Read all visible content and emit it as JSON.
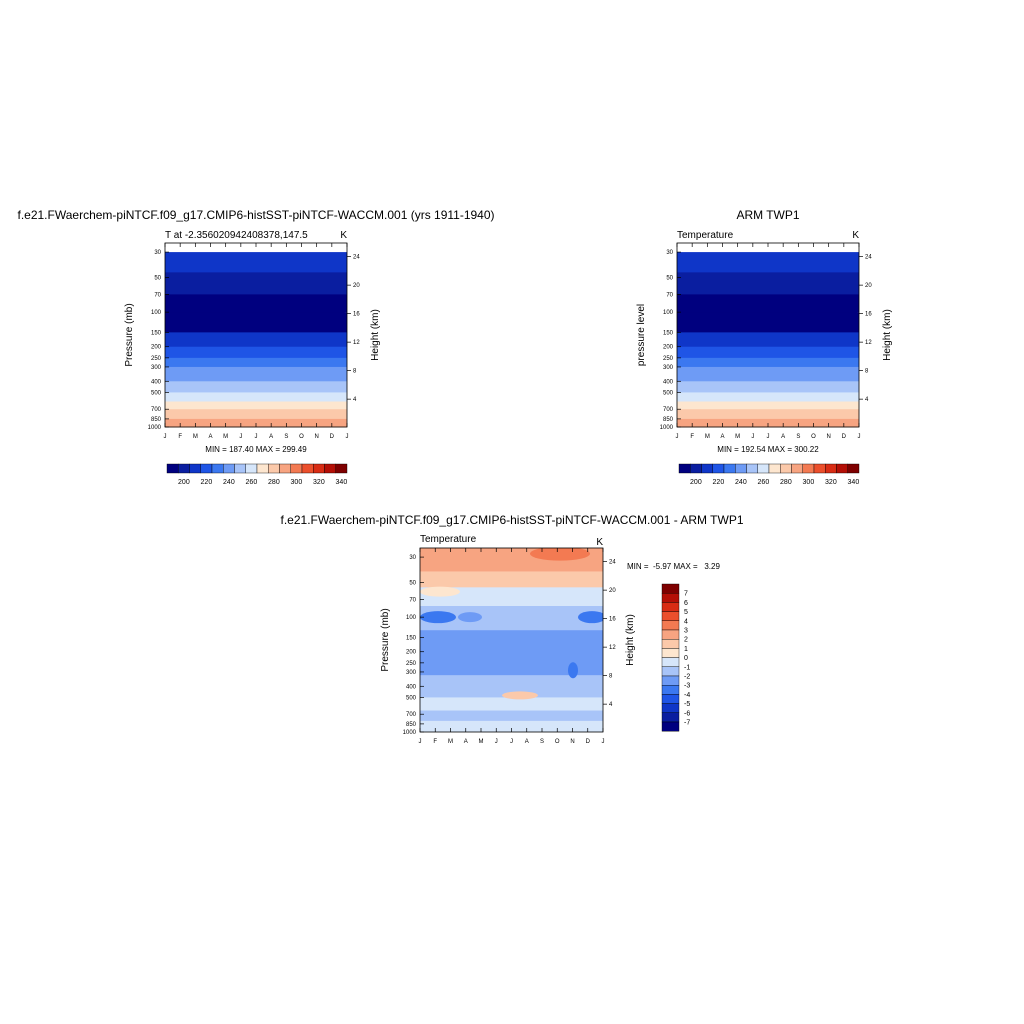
{
  "panel_titles": {
    "model": "f.e21.FWaerchem-piNTCF.f09_g17.CMIP6-histSST-piNTCF-WACCM.001 (yrs 1911-1940)",
    "obs": "ARM TWP1",
    "diff": "f.e21.FWaerchem-piNTCF.f09_g17.CMIP6-histSST-piNTCF-WACCM.001 - ARM TWP1"
  },
  "chart_data": [
    {
      "type": "heatmap",
      "name": "model",
      "left_label": "T at -2.356020942408378,147.5",
      "right_label": "K",
      "ylabel": "Pressure (mb)",
      "y2label": "Height (km)",
      "months": [
        "J",
        "F",
        "M",
        "A",
        "M",
        "J",
        "J",
        "A",
        "S",
        "O",
        "N",
        "D",
        "J"
      ],
      "pressure_ticks": [
        "30",
        "50",
        "70",
        "100",
        "150",
        "200",
        "250",
        "300",
        "400",
        "500",
        "700",
        "850",
        "1000"
      ],
      "height_ticks": [
        "24",
        "20",
        "16",
        "12",
        "8",
        "4"
      ],
      "stats": "MIN = 187.40 MAX = 299.49",
      "levels": [
        "200",
        "220",
        "240",
        "260",
        "280",
        "300",
        "320",
        "340"
      ],
      "bands": [
        {
          "p": 30,
          "v": 215
        },
        {
          "p": 45,
          "v": 208
        },
        {
          "p": 70,
          "v": 195
        },
        {
          "p": 100,
          "v": 192
        },
        {
          "p": 150,
          "v": 212
        },
        {
          "p": 200,
          "v": 222
        },
        {
          "p": 250,
          "v": 234
        },
        {
          "p": 300,
          "v": 244
        },
        {
          "p": 400,
          "v": 256
        },
        {
          "p": 500,
          "v": 266
        },
        {
          "p": 600,
          "v": 275
        },
        {
          "p": 700,
          "v": 284
        },
        {
          "p": 850,
          "v": 293
        },
        {
          "p": 1000,
          "v": 299
        }
      ]
    },
    {
      "type": "heatmap",
      "name": "obs",
      "left_label": "Temperature",
      "right_label": "K",
      "ylabel": "pressure level",
      "y2label": "Height (km)",
      "months": [
        "J",
        "F",
        "M",
        "A",
        "M",
        "J",
        "J",
        "A",
        "S",
        "O",
        "N",
        "D",
        "J"
      ],
      "pressure_ticks": [
        "30",
        "50",
        "70",
        "100",
        "150",
        "200",
        "250",
        "300",
        "400",
        "500",
        "700",
        "850",
        "1000"
      ],
      "height_ticks": [
        "24",
        "20",
        "16",
        "12",
        "8",
        "4"
      ],
      "stats": "MIN = 192.54 MAX = 300.22",
      "levels": [
        "200",
        "220",
        "240",
        "260",
        "280",
        "300",
        "320",
        "340"
      ]
    },
    {
      "type": "heatmap",
      "name": "difference",
      "left_label": "Temperature",
      "right_label": "K",
      "ylabel": "Pressure (mb)",
      "y2label": "Height (km)",
      "months": [
        "J",
        "F",
        "M",
        "A",
        "M",
        "J",
        "J",
        "A",
        "S",
        "O",
        "N",
        "D",
        "J"
      ],
      "pressure_ticks": [
        "30",
        "50",
        "70",
        "100",
        "150",
        "200",
        "250",
        "300",
        "400",
        "500",
        "700",
        "850",
        "1000"
      ],
      "height_ticks": [
        "24",
        "20",
        "16",
        "12",
        "8",
        "4"
      ],
      "stats": "MIN =  -5.97 MAX =   3.29",
      "levels": [
        "7",
        "6",
        "5",
        "4",
        "3",
        "2",
        "1",
        "0",
        "-1",
        "-2",
        "-3",
        "-4",
        "-5",
        "-6",
        "-7"
      ],
      "regions": [
        {
          "p": [
            25,
            40
          ],
          "v": 2
        },
        {
          "p": [
            40,
            55
          ],
          "v": 1
        },
        {
          "p": [
            55,
            80
          ],
          "v": -1
        },
        {
          "p": [
            80,
            130
          ],
          "v": -2
        },
        {
          "p": [
            130,
            320
          ],
          "v": -3
        },
        {
          "p": [
            320,
            500
          ],
          "v": -2
        },
        {
          "p": [
            500,
            650
          ],
          "v": -1
        },
        {
          "p": [
            650,
            800
          ],
          "v": -2
        },
        {
          "p": [
            800,
            1000
          ],
          "v": -1
        }
      ]
    }
  ],
  "colors": {
    "temp_scale": [
      "#00007f",
      "#0a1ea0",
      "#0f36c8",
      "#1f55e6",
      "#3b78f0",
      "#6e9bf5",
      "#a8c4f8",
      "#d6e6fa",
      "#fde6cf",
      "#fbc9aa",
      "#f7a481",
      "#f37a52",
      "#eb4f2c",
      "#d82c14",
      "#b40f06",
      "#7e0000"
    ],
    "diff_scale": [
      "#7e0000",
      "#b40f06",
      "#d82c14",
      "#eb4f2c",
      "#f37a52",
      "#f7a481",
      "#fbc9aa",
      "#fde6cf",
      "#d6e6fa",
      "#a8c4f8",
      "#6e9bf5",
      "#3b78f0",
      "#1f55e6",
      "#0f36c8",
      "#0a1ea0",
      "#00007f"
    ]
  }
}
